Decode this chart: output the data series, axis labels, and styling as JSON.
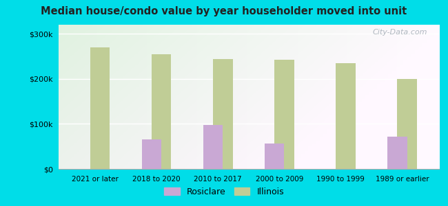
{
  "title": "Median house/condo value by year householder moved into unit",
  "categories": [
    "2021 or later",
    "2018 to 2020",
    "2010 to 2017",
    "2000 to 2009",
    "1990 to 1999",
    "1989 or earlier"
  ],
  "rosiclare_values": [
    null,
    65000,
    97000,
    57000,
    null,
    72000
  ],
  "illinois_values": [
    270000,
    255000,
    244000,
    242000,
    234000,
    200000
  ],
  "rosiclare_color": "#c9a8d4",
  "illinois_color": "#c0cd96",
  "background_outer": "#00dde8",
  "ylim": [
    0,
    320000
  ],
  "yticks": [
    0,
    100000,
    200000,
    300000
  ],
  "bar_width": 0.32,
  "legend_rosiclare": "Rosiclare",
  "legend_illinois": "Illinois",
  "watermark": "City-Data.com"
}
